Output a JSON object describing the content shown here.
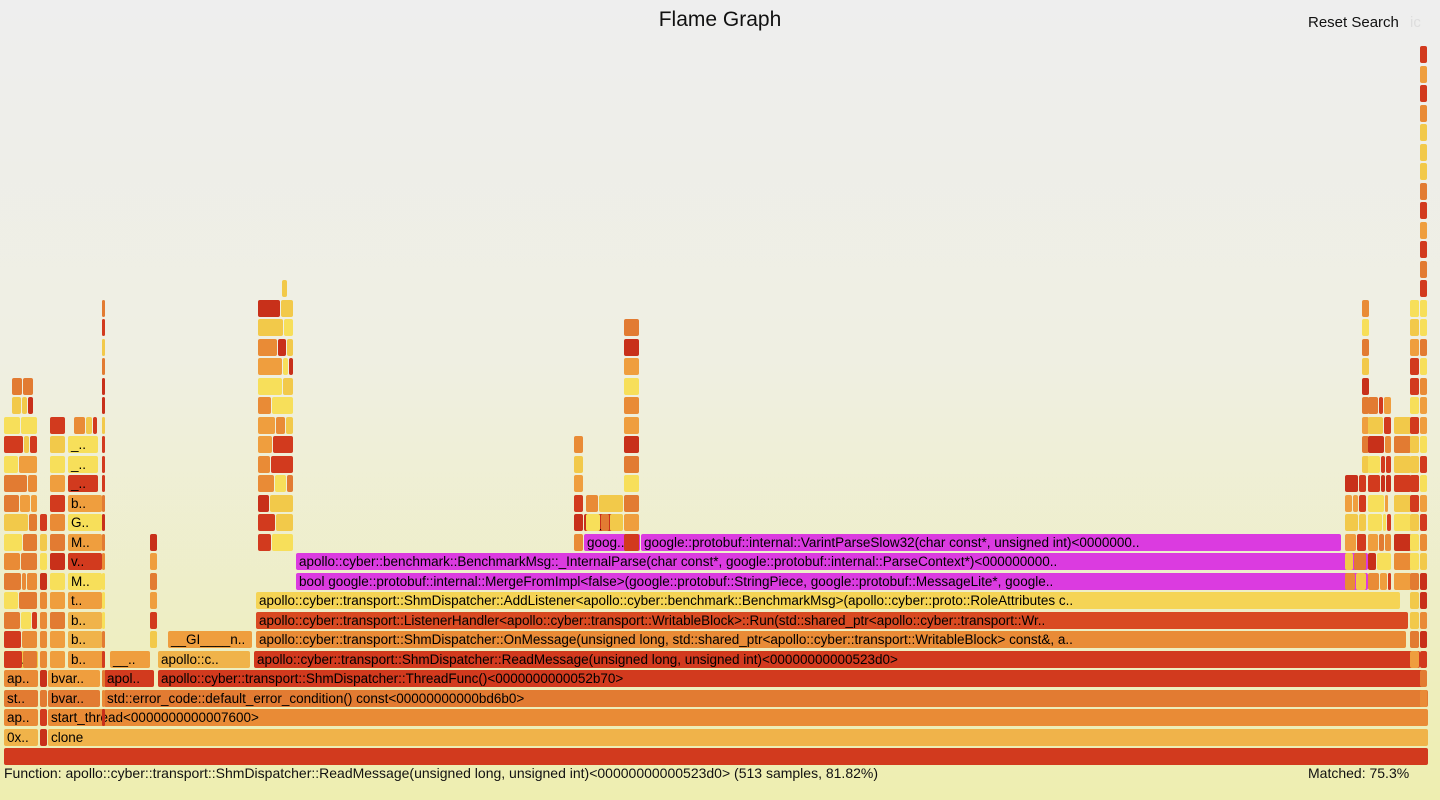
{
  "title": "Flame Graph",
  "reset_search": "Reset Search",
  "ic": "ic",
  "details": "Function: apollo::cyber::transport::ShmDispatcher::ReadMessage(unsigned long, unsigned int)<00000000000523d0> (513 samples, 81.82%)",
  "matched": "Matched: 75.3%",
  "colors": {
    "red": "#d23a1e",
    "dark_red": "#c8301a",
    "orange": "#e27b32",
    "light_orange": "#ef9e3e",
    "yellow": "#f2c94a",
    "pale_yellow": "#f7df5a",
    "magenta": "#db3be0"
  },
  "frames": [
    {
      "label": "clone",
      "color": "#f0b34a"
    },
    {
      "label": "0x..",
      "color": "#f0b34a"
    },
    {
      "label": "start_thread<0000000000007600>",
      "color": "#e98b36"
    },
    {
      "label": "ap..",
      "color": "#e98b36"
    },
    {
      "label": "std::error_code::default_error_condition() const<00000000000bd6b0>",
      "color": "#e27b32"
    },
    {
      "label": "bvar..",
      "color": "#e27b32"
    },
    {
      "label": "st..",
      "color": "#e27b32"
    },
    {
      "label": "apollo::cyber::transport::ShmDispatcher::ThreadFunc()<0000000000052b70>",
      "color": "#d23a1e"
    },
    {
      "label": "apol..",
      "color": "#d23a1e"
    },
    {
      "label": "bvar..",
      "color": "#ef9e3e"
    },
    {
      "label": "ap..",
      "color": "#e98b36"
    },
    {
      "label": "apollo::cyber::transport::ShmDispatcher::ReadMessage(unsigned long, unsigned int)<00000000000523d0>",
      "color": "#d23a1e"
    },
    {
      "label": "apollo::c..",
      "color": "#f0b34a"
    },
    {
      "label": "__..",
      "color": "#ef9e3e"
    },
    {
      "label": "b..",
      "color": "#ef9e3e"
    },
    {
      "label": "st..",
      "color": "#f2c94a"
    },
    {
      "label": "apollo::cyber::transport::ShmDispatcher::OnMessage(unsigned long, std::shared_ptr<apollo::cyber::transport::WritableBlock> const&, a..",
      "color": "#e98b36"
    },
    {
      "label": "__GI____n..",
      "color": "#ef9e3e"
    },
    {
      "label": "b..",
      "color": "#f0b34a"
    },
    {
      "label": "apollo::cyber::transport::ListenerHandler<apollo::cyber::transport::WritableBlock>::Run(std::shared_ptr<apollo::cyber::transport::Wr..",
      "color": "#d94a22"
    },
    {
      "label": "b..",
      "color": "#f0b34a"
    },
    {
      "label": "apollo::cyber::transport::ShmDispatcher::AddListener<apollo::cyber::benchmark::BenchmarkMsg>(apollo::cyber::proto::RoleAttributes c..",
      "color": "#f5d455"
    },
    {
      "label": "t..",
      "color": "#ef9e3e"
    },
    {
      "label": "bool google::protobuf::internal::MergeFromImpl<false>(google::protobuf::StringPiece, google::protobuf::MessageLite*, google..",
      "color": "#db3be0"
    },
    {
      "label": "M..",
      "color": "#f7df5a"
    },
    {
      "label": "apollo::cyber::benchmark::BenchmarkMsg::_InternalParse(char const*, google::protobuf::internal::ParseContext*)<000000000..",
      "color": "#db3be0"
    },
    {
      "label": "v..",
      "color": "#d23a1e"
    },
    {
      "label": "google::protobuf::internal::VarintParseSlow32(char const*, unsigned int)<0000000..",
      "color": "#db3be0"
    },
    {
      "label": "goog..",
      "color": "#db3be0"
    },
    {
      "label": "M..",
      "color": "#ef9e3e"
    },
    {
      "label": "__..",
      "color": "#c8301a"
    },
    {
      "label": "G..",
      "color": "#f7df5a"
    },
    {
      "label": "b..",
      "color": "#ef9e3e"
    },
    {
      "label": "_..",
      "color": "#d23a1e"
    },
    {
      "label": "_..",
      "color": "#f7df5a"
    },
    {
      "label": "_..",
      "color": "#f7df5a"
    }
  ]
}
